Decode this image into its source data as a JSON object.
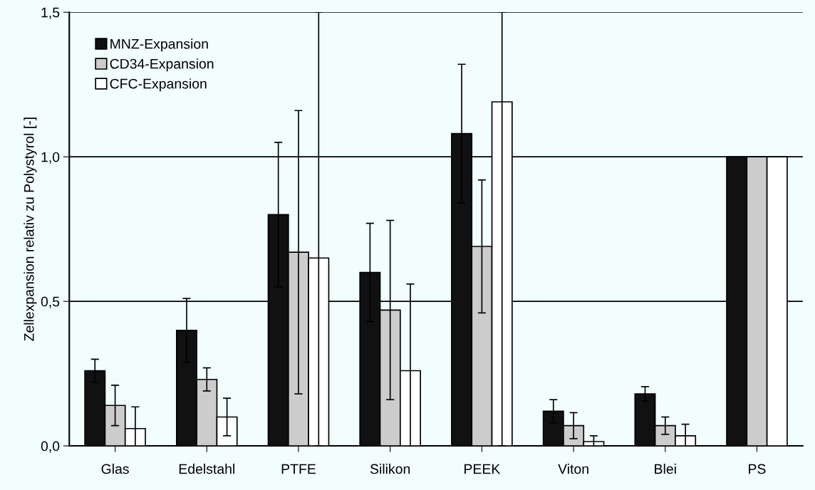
{
  "chart_data": {
    "type": "bar",
    "ylabel": "Zellexpansion relativ zu Polystyrol [-]",
    "categories": [
      "Glas",
      "Edelstahl",
      "PTFE",
      "Silikon",
      "PEEK",
      "Viton",
      "Blei",
      "PS"
    ],
    "series": [
      {
        "name": "MNZ-Expansion",
        "color": "#111111",
        "values": [
          0.26,
          0.4,
          0.8,
          0.6,
          1.08,
          0.12,
          0.18,
          1.0
        ],
        "errors": [
          0.04,
          0.11,
          0.25,
          0.17,
          0.24,
          0.04,
          0.025,
          null
        ]
      },
      {
        "name": "CD34-Expansion",
        "color": "#cccccc",
        "values": [
          0.14,
          0.23,
          0.67,
          0.47,
          0.69,
          0.07,
          0.07,
          1.0
        ],
        "errors": [
          0.07,
          0.04,
          0.49,
          0.31,
          0.23,
          0.045,
          0.03,
          null
        ]
      },
      {
        "name": "CFC-Expansion",
        "color": "#ffffff",
        "values": [
          0.06,
          0.1,
          0.65,
          0.26,
          1.19,
          0.015,
          0.035,
          1.0
        ],
        "errors": [
          0.075,
          0.065,
          [
            0,
            1.5
          ],
          0.3,
          [
            0,
            1.5
          ],
          0.02,
          0.04,
          null
        ]
      }
    ],
    "ylim": [
      0,
      1.5
    ],
    "yticks": [
      {
        "value": 0,
        "label": "0,0"
      },
      {
        "value": 0.5,
        "label": "0,5"
      },
      {
        "value": 1.0,
        "label": "1,0"
      },
      {
        "value": 1.5,
        "label": "1,5"
      }
    ],
    "grid": "y",
    "legend": "top left"
  }
}
